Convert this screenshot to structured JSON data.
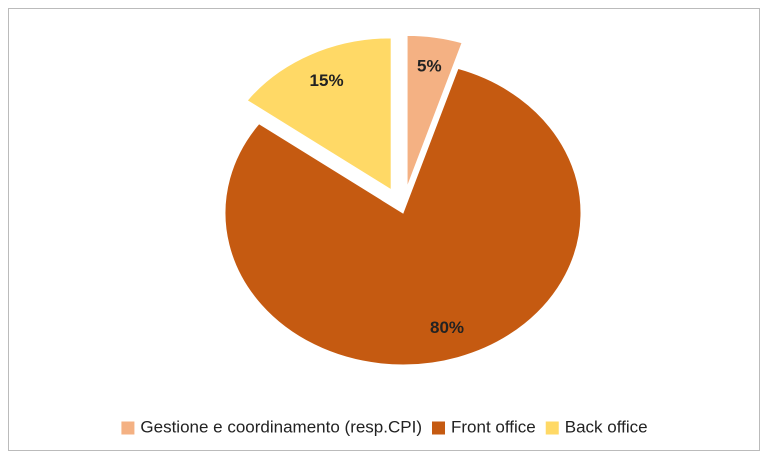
{
  "chart_data": {
    "type": "pie",
    "categories": [
      "Gestione e coordinamento (resp.CPI)",
      "Front office",
      "Back office"
    ],
    "values": [
      5,
      80,
      15
    ],
    "value_labels": [
      "5%",
      "80%",
      "15%"
    ],
    "colors": [
      "#F4B183",
      "#C55A11",
      "#FFD966"
    ],
    "explode": [
      true,
      false,
      true
    ],
    "legend": "bottom"
  }
}
